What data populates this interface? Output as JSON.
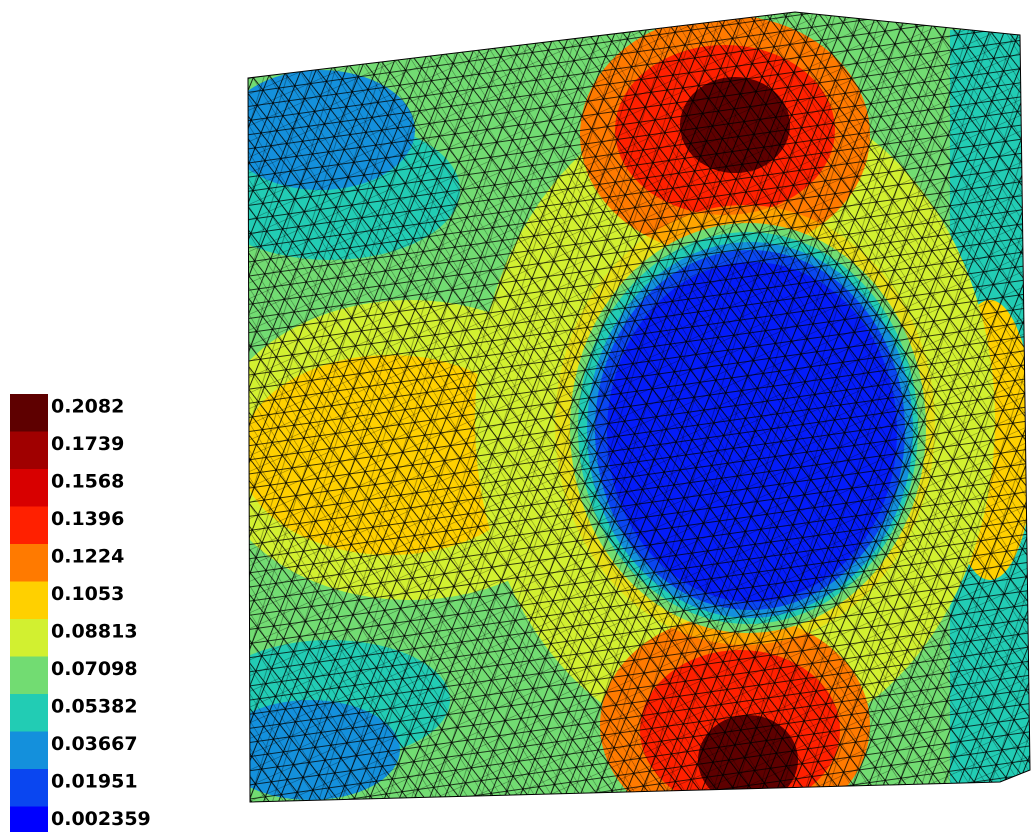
{
  "colorbar": {
    "levels": [
      {
        "label": "0.2082",
        "color": "#5e0000"
      },
      {
        "label": "0.1739",
        "color": "#a00000"
      },
      {
        "label": "0.1568",
        "color": "#d80000"
      },
      {
        "label": "0.1396",
        "color": "#ff2000"
      },
      {
        "label": "0.1224",
        "color": "#ff7a00"
      },
      {
        "label": "0.1053",
        "color": "#ffd000"
      },
      {
        "label": "0.08813",
        "color": "#d2f030"
      },
      {
        "label": "0.07098",
        "color": "#72dc72"
      },
      {
        "label": "0.05382",
        "color": "#22ccb4"
      },
      {
        "label": "0.03667",
        "color": "#1490dc"
      },
      {
        "label": "0.01951",
        "color": "#0a46f0"
      },
      {
        "label": "0.002359",
        "color": "#0000ff"
      }
    ]
  }
}
